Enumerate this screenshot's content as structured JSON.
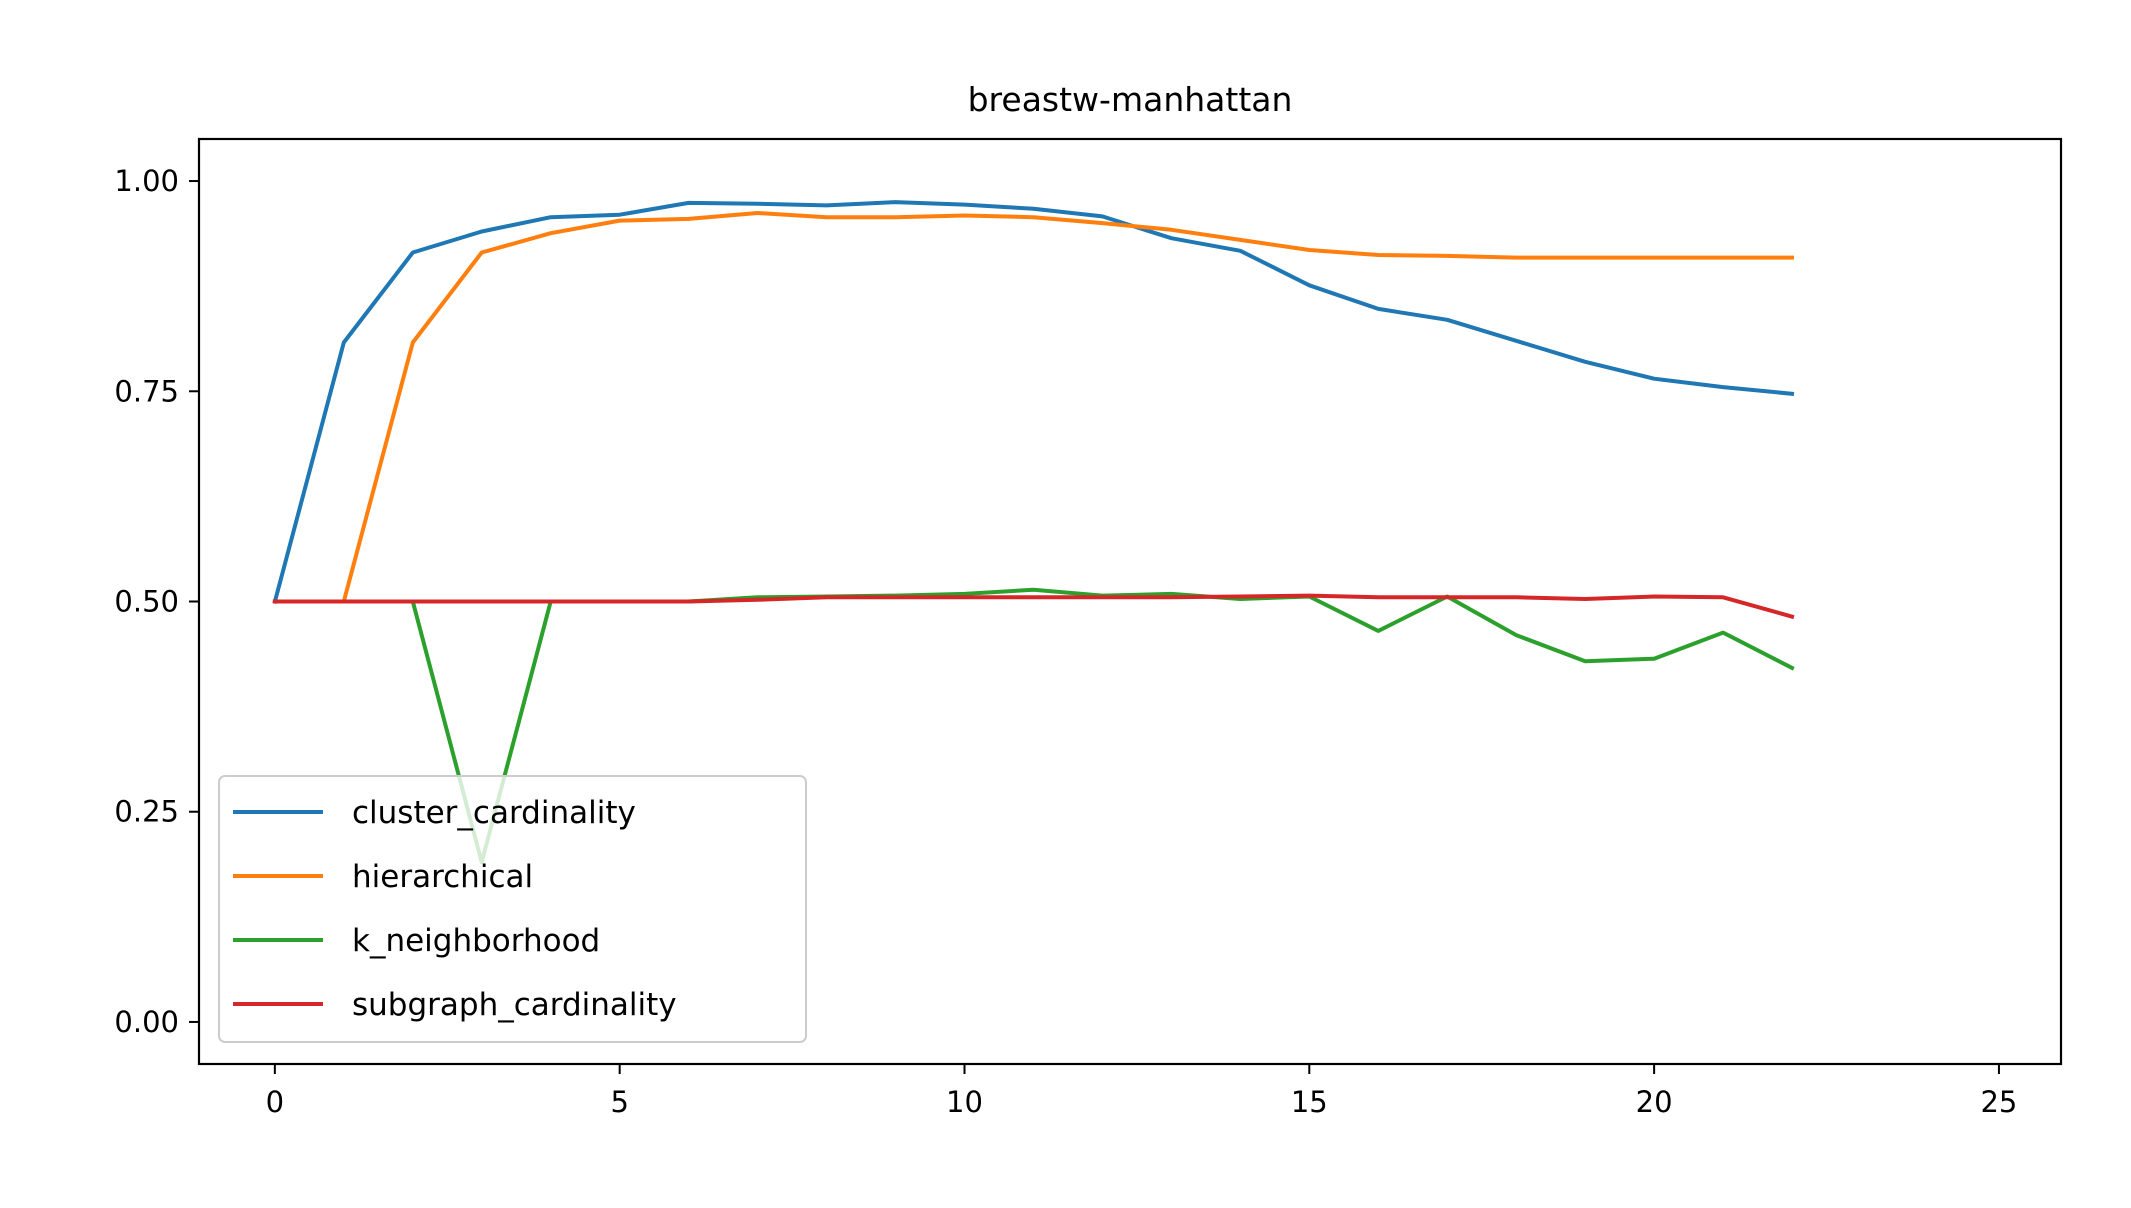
{
  "chart_data": {
    "type": "line",
    "title": "breastw-manhattan",
    "xlabel": "",
    "ylabel": "",
    "xlim": [
      -1.1,
      25.9
    ],
    "ylim": [
      -0.05,
      1.05
    ],
    "xticks": [
      0,
      5,
      10,
      15,
      20,
      25
    ],
    "xtick_labels": [
      "0",
      "5",
      "10",
      "15",
      "20",
      "25"
    ],
    "yticks": [
      0.0,
      0.25,
      0.5,
      0.75,
      1.0
    ],
    "ytick_labels": [
      "0.00",
      "0.25",
      "0.50",
      "0.75",
      "1.00"
    ],
    "grid": false,
    "legend": "lower-left",
    "x": [
      0,
      1,
      2,
      3,
      4,
      5,
      6,
      7,
      8,
      9,
      10,
      11,
      12,
      13,
      14,
      15,
      16,
      17,
      18,
      19,
      20,
      21,
      22
    ],
    "series": [
      {
        "name": "cluster_cardinality",
        "color": "#1f77b4",
        "values": [
          0.5,
          0.808,
          0.915,
          0.94,
          0.957,
          0.96,
          0.974,
          0.973,
          0.971,
          0.975,
          0.972,
          0.967,
          0.958,
          0.932,
          0.917,
          0.876,
          0.848,
          0.835,
          0.81,
          0.785,
          0.765,
          0.755,
          0.747
        ]
      },
      {
        "name": "hierarchical",
        "color": "#ff7f0e",
        "values": [
          0.5,
          0.5,
          0.808,
          0.915,
          0.938,
          0.953,
          0.955,
          0.962,
          0.957,
          0.957,
          0.959,
          0.957,
          0.95,
          0.942,
          0.93,
          0.918,
          0.912,
          0.911,
          0.909,
          0.909,
          0.909,
          0.909,
          0.909
        ]
      },
      {
        "name": "k_neighborhood",
        "color": "#2ca02c",
        "values": [
          0.5,
          0.5,
          0.5,
          0.19,
          0.5,
          0.5,
          0.5,
          0.505,
          0.506,
          0.507,
          0.509,
          0.514,
          0.507,
          0.509,
          0.503,
          0.506,
          0.465,
          0.506,
          0.46,
          0.429,
          0.432,
          0.463,
          0.421
        ]
      },
      {
        "name": "subgraph_cardinality",
        "color": "#d62728",
        "values": [
          0.5,
          0.5,
          0.5,
          0.5,
          0.5,
          0.5,
          0.5,
          0.502,
          0.505,
          0.505,
          0.505,
          0.505,
          0.505,
          0.505,
          0.506,
          0.507,
          0.505,
          0.505,
          0.505,
          0.503,
          0.506,
          0.505,
          0.482
        ]
      }
    ]
  }
}
